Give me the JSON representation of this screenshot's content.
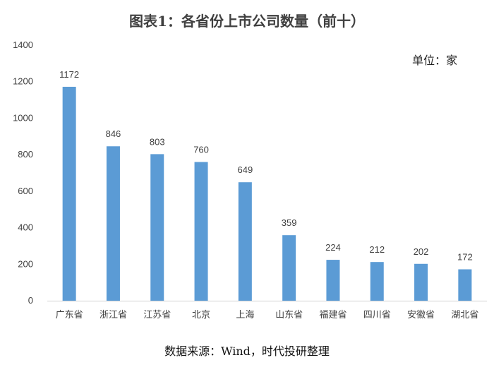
{
  "chart_data": {
    "type": "bar",
    "title": "图表1：各省份上市公司数量（前十）",
    "unit_label": "单位：家",
    "source_note": "数据来源：Wind，时代投研整理",
    "categories": [
      "广东省",
      "浙江省",
      "江苏省",
      "北京",
      "上海",
      "山东省",
      "福建省",
      "四川省",
      "安徽省",
      "湖北省"
    ],
    "values": [
      1172,
      846,
      803,
      760,
      649,
      359,
      224,
      212,
      202,
      172
    ],
    "ylim": [
      0,
      1400
    ],
    "yticks": [
      0,
      200,
      400,
      600,
      800,
      1000,
      1200,
      1400
    ],
    "grid": false,
    "bar_color": "#5b9bd5"
  }
}
